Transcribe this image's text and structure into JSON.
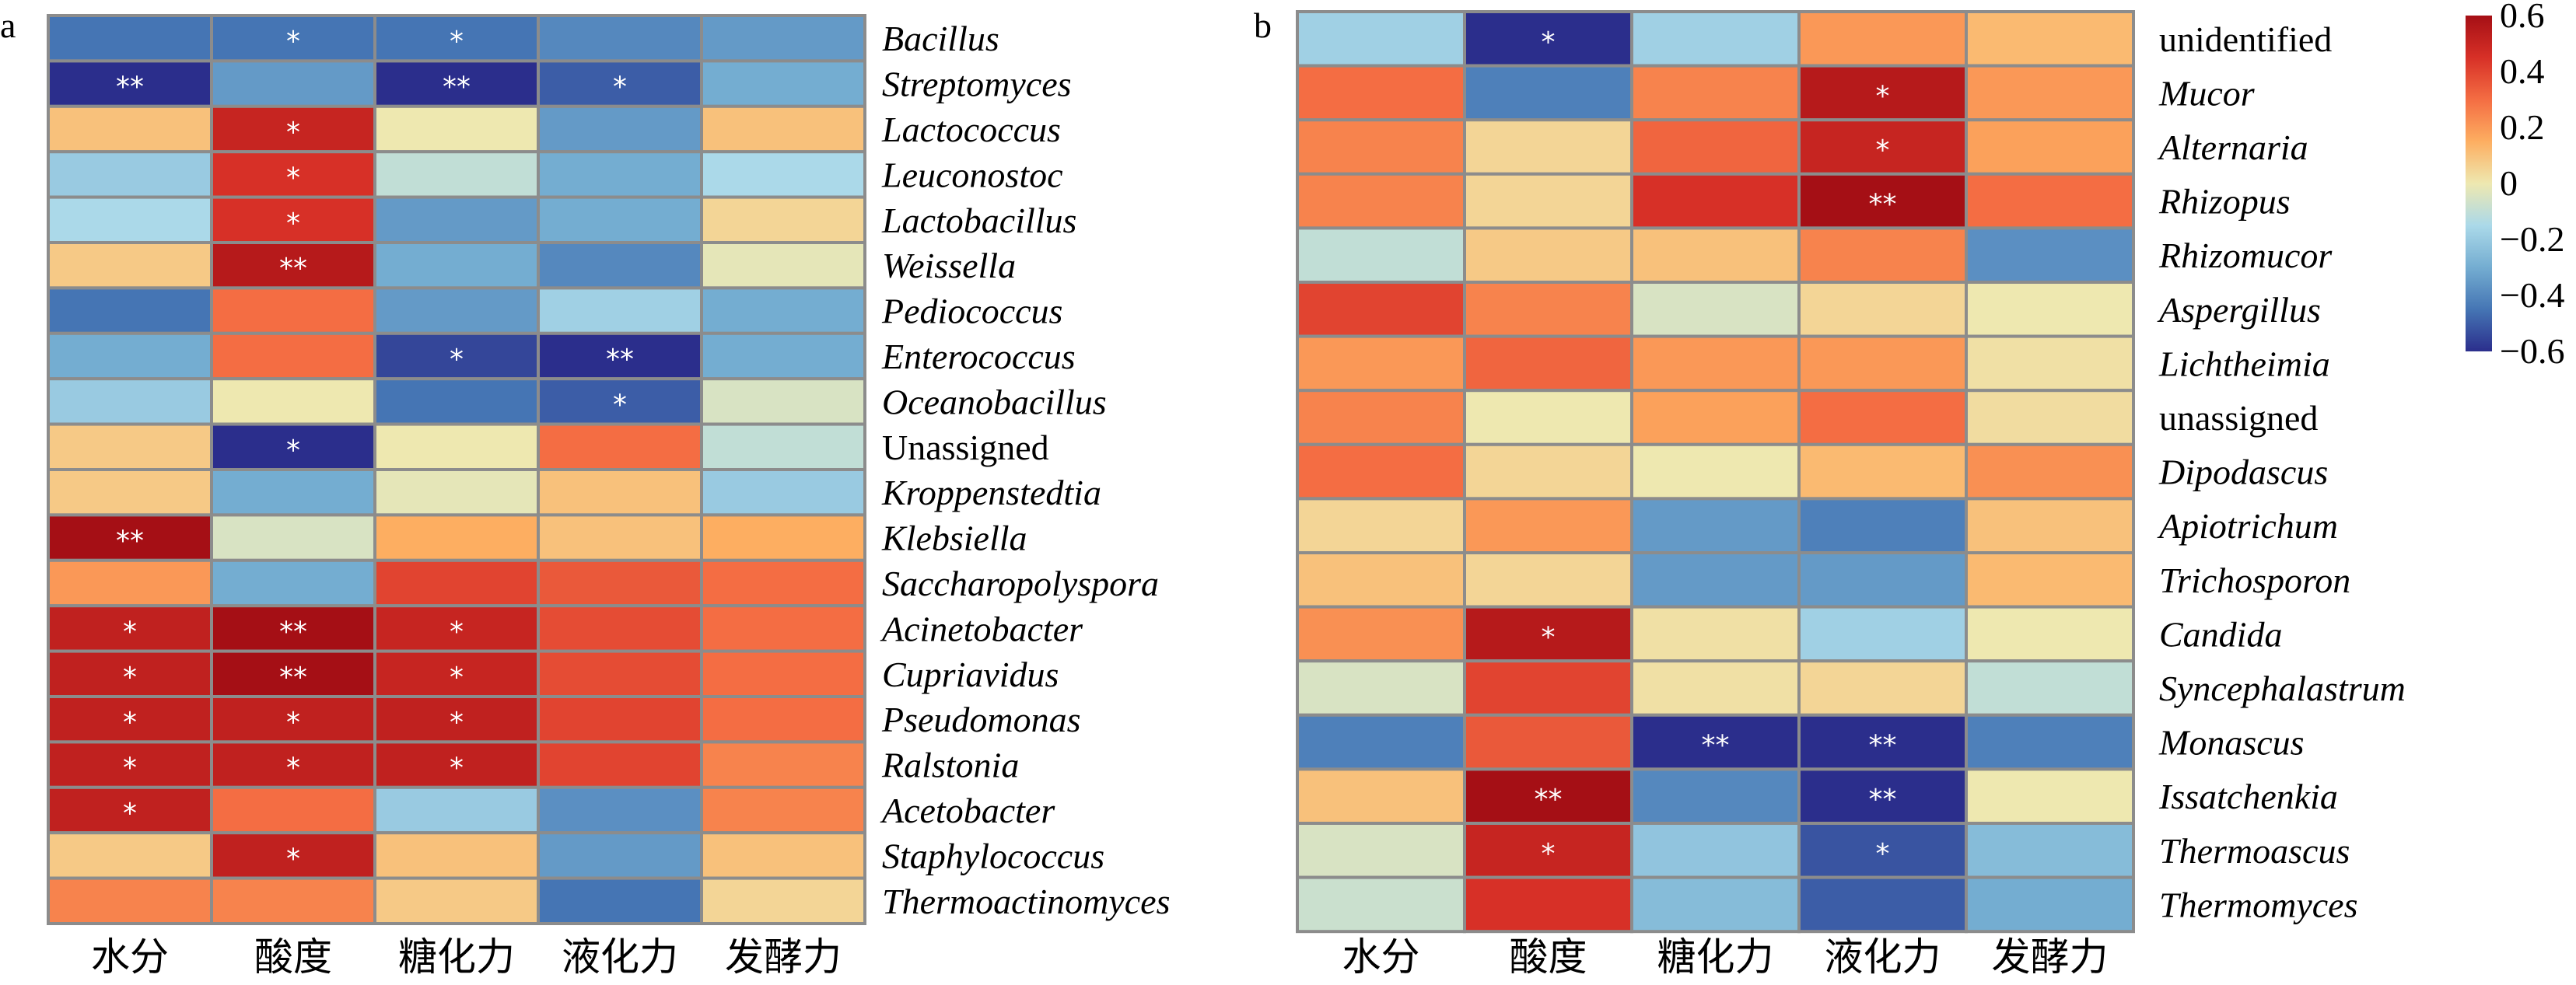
{
  "chart_data": [
    {
      "type": "heatmap",
      "panel_label": "a",
      "columns": [
        "水分",
        "酸度",
        "糖化力",
        "液化力",
        "发酵力"
      ],
      "rows": [
        {
          "label": "Bacillus",
          "italic": true,
          "values": [
            -0.45,
            -0.45,
            -0.45,
            -0.4,
            -0.35
          ],
          "sig": [
            "",
            "*",
            "*",
            "",
            ""
          ]
        },
        {
          "label": "Streptomyces",
          "italic": true,
          "values": [
            -0.62,
            -0.35,
            -0.62,
            -0.5,
            -0.3
          ],
          "sig": [
            "**",
            "",
            "**",
            "*",
            ""
          ]
        },
        {
          "label": "Lactococcus",
          "italic": true,
          "values": [
            0.1,
            0.5,
            0.0,
            -0.35,
            0.1
          ],
          "sig": [
            "",
            "*",
            "",
            "",
            ""
          ]
        },
        {
          "label": "Leuconostoc",
          "italic": true,
          "values": [
            -0.2,
            0.45,
            -0.1,
            -0.3,
            -0.15
          ],
          "sig": [
            "",
            "*",
            "",
            "",
            ""
          ]
        },
        {
          "label": "Lactobacillus",
          "italic": true,
          "values": [
            -0.15,
            0.45,
            -0.35,
            -0.3,
            0.05
          ],
          "sig": [
            "",
            "*",
            "",
            "",
            ""
          ]
        },
        {
          "label": "Weissella",
          "italic": true,
          "values": [
            0.08,
            0.55,
            -0.3,
            -0.4,
            -0.02
          ],
          "sig": [
            "",
            "**",
            "",
            "",
            ""
          ]
        },
        {
          "label": "Pediococcus",
          "italic": true,
          "values": [
            -0.45,
            0.3,
            -0.35,
            -0.18,
            -0.3
          ],
          "sig": [
            "",
            "",
            "",
            "",
            ""
          ]
        },
        {
          "label": "Enterococcus",
          "italic": true,
          "values": [
            -0.3,
            0.3,
            -0.55,
            -0.62,
            -0.3
          ],
          "sig": [
            "",
            "",
            "*",
            "**",
            ""
          ]
        },
        {
          "label": "Oceanobacillus",
          "italic": true,
          "values": [
            -0.2,
            0.0,
            -0.45,
            -0.5,
            -0.05
          ],
          "sig": [
            "",
            "",
            "",
            "*",
            ""
          ]
        },
        {
          "label": "Unassigned",
          "italic": false,
          "values": [
            0.08,
            -0.62,
            0.0,
            0.3,
            -0.1
          ],
          "sig": [
            "",
            "*",
            "",
            "",
            ""
          ]
        },
        {
          "label": "Kroppenstedtia",
          "italic": true,
          "values": [
            0.08,
            -0.3,
            -0.02,
            0.1,
            -0.2
          ],
          "sig": [
            "",
            "",
            "",
            "",
            ""
          ]
        },
        {
          "label": "Klebsiella",
          "italic": true,
          "values": [
            0.6,
            -0.05,
            0.15,
            0.1,
            0.15
          ],
          "sig": [
            "**",
            "",
            "",
            "",
            ""
          ]
        },
        {
          "label": "Saccharopolyspora",
          "italic": true,
          "values": [
            0.2,
            -0.3,
            0.4,
            0.35,
            0.3
          ],
          "sig": [
            "",
            "",
            "",
            "",
            ""
          ]
        },
        {
          "label": "Acinetobacter",
          "italic": true,
          "values": [
            0.52,
            0.6,
            0.5,
            0.38,
            0.3
          ],
          "sig": [
            "*",
            "**",
            "*",
            "",
            ""
          ]
        },
        {
          "label": "Cupriavidus",
          "italic": true,
          "values": [
            0.52,
            0.6,
            0.5,
            0.38,
            0.3
          ],
          "sig": [
            "*",
            "**",
            "*",
            "",
            ""
          ]
        },
        {
          "label": "Pseudomonas",
          "italic": true,
          "values": [
            0.52,
            0.52,
            0.52,
            0.4,
            0.3
          ],
          "sig": [
            "*",
            "*",
            "*",
            "",
            ""
          ]
        },
        {
          "label": "Ralstonia",
          "italic": true,
          "values": [
            0.52,
            0.52,
            0.52,
            0.4,
            0.25
          ],
          "sig": [
            "*",
            "*",
            "*",
            "",
            ""
          ]
        },
        {
          "label": "Acetobacter",
          "italic": true,
          "values": [
            0.52,
            0.3,
            -0.2,
            -0.38,
            0.25
          ],
          "sig": [
            "*",
            "",
            "",
            "",
            ""
          ]
        },
        {
          "label": "Staphylococcus",
          "italic": true,
          "values": [
            0.08,
            0.52,
            0.1,
            -0.35,
            0.1
          ],
          "sig": [
            "",
            "*",
            "",
            "",
            ""
          ]
        },
        {
          "label": "Thermoactinomyces",
          "italic": true,
          "values": [
            0.25,
            0.25,
            0.08,
            -0.45,
            0.05
          ],
          "sig": [
            "",
            "",
            "",
            "",
            ""
          ]
        }
      ]
    },
    {
      "type": "heatmap",
      "panel_label": "b",
      "columns": [
        "水分",
        "酸度",
        "糖化力",
        "液化力",
        "发酵力"
      ],
      "rows": [
        {
          "label": "unidentified",
          "italic": false,
          "values": [
            -0.18,
            -0.62,
            -0.18,
            0.2,
            0.12
          ],
          "sig": [
            "",
            "*",
            "",
            "",
            ""
          ]
        },
        {
          "label": "Mucor",
          "italic": true,
          "values": [
            0.3,
            -0.42,
            0.25,
            0.55,
            0.2
          ],
          "sig": [
            "",
            "",
            "",
            "*",
            ""
          ]
        },
        {
          "label": "Alternaria",
          "italic": true,
          "values": [
            0.25,
            0.05,
            0.32,
            0.5,
            0.18
          ],
          "sig": [
            "",
            "",
            "",
            "*",
            ""
          ]
        },
        {
          "label": "Rhizopus",
          "italic": true,
          "values": [
            0.25,
            0.05,
            0.45,
            0.6,
            0.3
          ],
          "sig": [
            "",
            "",
            "",
            "**",
            ""
          ]
        },
        {
          "label": "Rhizomucor",
          "italic": true,
          "values": [
            -0.1,
            0.08,
            0.1,
            0.25,
            -0.38
          ],
          "sig": [
            "",
            "",
            "",
            "",
            ""
          ]
        },
        {
          "label": "Aspergillus",
          "italic": true,
          "values": [
            0.4,
            0.25,
            -0.05,
            0.05,
            0.0
          ],
          "sig": [
            "",
            "",
            "",
            "",
            ""
          ]
        },
        {
          "label": "Lichtheimia",
          "italic": true,
          "values": [
            0.2,
            0.32,
            0.2,
            0.2,
            0.02
          ],
          "sig": [
            "",
            "",
            "",
            "",
            ""
          ]
        },
        {
          "label": "unassigned",
          "italic": false,
          "values": [
            0.25,
            0.0,
            0.18,
            0.3,
            0.03
          ],
          "sig": [
            "",
            "",
            "",
            "",
            ""
          ]
        },
        {
          "label": "Dipodascus",
          "italic": true,
          "values": [
            0.3,
            0.05,
            0.0,
            0.12,
            0.22
          ],
          "sig": [
            "",
            "",
            "",
            "",
            ""
          ]
        },
        {
          "label": "Apiotrichum",
          "italic": true,
          "values": [
            0.05,
            0.2,
            -0.35,
            -0.42,
            0.1
          ],
          "sig": [
            "",
            "",
            "",
            "",
            ""
          ]
        },
        {
          "label": "Trichosporon",
          "italic": true,
          "values": [
            0.1,
            0.05,
            -0.35,
            -0.35,
            0.12
          ],
          "sig": [
            "",
            "",
            "",
            "",
            ""
          ]
        },
        {
          "label": "Candida",
          "italic": true,
          "values": [
            0.22,
            0.55,
            0.02,
            -0.18,
            0.0
          ],
          "sig": [
            "",
            "*",
            "",
            "",
            ""
          ]
        },
        {
          "label": "Syncephalastrum",
          "italic": true,
          "values": [
            -0.05,
            0.4,
            0.02,
            0.05,
            -0.1
          ],
          "sig": [
            "",
            "",
            "",
            "",
            ""
          ]
        },
        {
          "label": "Monascus",
          "italic": true,
          "values": [
            -0.42,
            0.35,
            -0.62,
            -0.62,
            -0.42
          ],
          "sig": [
            "",
            "",
            "**",
            "**",
            ""
          ]
        },
        {
          "label": "Issatchenkia",
          "italic": true,
          "values": [
            0.1,
            0.6,
            -0.4,
            -0.62,
            0.0
          ],
          "sig": [
            "",
            "**",
            "",
            "**",
            ""
          ]
        },
        {
          "label": "Thermoascus",
          "italic": true,
          "values": [
            -0.05,
            0.5,
            -0.22,
            -0.52,
            -0.25
          ],
          "sig": [
            "",
            "*",
            "",
            "*",
            ""
          ]
        },
        {
          "label": "Thermomyces",
          "italic": true,
          "values": [
            -0.08,
            0.45,
            -0.25,
            -0.5,
            -0.3
          ],
          "sig": [
            "",
            "",
            "",
            "",
            ""
          ]
        }
      ]
    }
  ],
  "colorbar": {
    "range": [
      -0.6,
      0.6
    ],
    "ticks": [
      "0.6",
      "0.4",
      "0.2",
      "0",
      "−0.2",
      "−0.4",
      "−0.6"
    ],
    "tick_values": [
      0.6,
      0.4,
      0.2,
      0,
      -0.2,
      -0.4,
      -0.6
    ],
    "colors": [
      "#2b2e8c",
      "#4575b4",
      "#74add1",
      "#abd9e9",
      "#eee8b0",
      "#fdae61",
      "#f46d43",
      "#d73027",
      "#a50f15"
    ]
  }
}
